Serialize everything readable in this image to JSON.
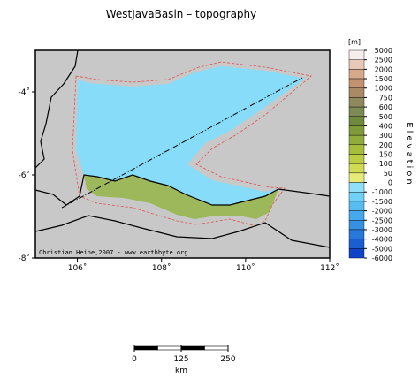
{
  "title": "WestJavaBasin – topography",
  "map": {
    "xlim": [
      105,
      112
    ],
    "ylim": [
      -8,
      -3
    ],
    "xticks": [
      {
        "value": 106,
        "label": "106˚"
      },
      {
        "value": 108,
        "label": "108˚"
      },
      {
        "value": 110,
        "label": "110˚"
      },
      {
        "value": 112,
        "label": "112˚"
      }
    ],
    "yticks": [
      {
        "value": -4,
        "label": "-4˚"
      },
      {
        "value": -6,
        "label": "-6˚"
      },
      {
        "value": -8,
        "label": "-8˚"
      }
    ],
    "credit": "Christian Heine,2007 - www.earthbyte.org"
  },
  "colorbar": {
    "unit": "[m]",
    "label": "Elevation",
    "ticks": [
      5000,
      2500,
      2000,
      1500,
      1000,
      750,
      600,
      500,
      400,
      300,
      200,
      150,
      100,
      50,
      0,
      -1000,
      -1500,
      -2000,
      -2500,
      -3000,
      -4000,
      -5000,
      -6000
    ],
    "colors": [
      "#f6eded",
      "#e8c9b8",
      "#d6a88c",
      "#c3926f",
      "#a98a64",
      "#8f8a5e",
      "#7d8a55",
      "#6f8a3c",
      "#809a3a",
      "#92ac3c",
      "#a6bd3c",
      "#bccd44",
      "#d0db54",
      "#e6ea78",
      "#8fdff8",
      "#70d0f6",
      "#57bdf0",
      "#45a8ea",
      "#3590e2",
      "#2878da",
      "#1b5ed2",
      "#1044c8"
    ]
  },
  "scalebar": {
    "ticks": [
      0,
      125,
      250
    ],
    "unit": "km"
  }
}
